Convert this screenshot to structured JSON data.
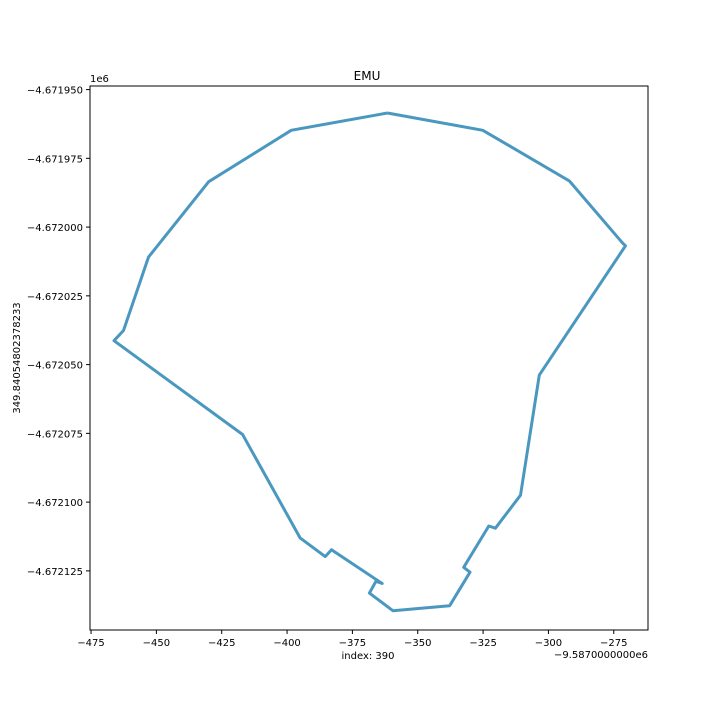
{
  "chart_data": {
    "type": "line",
    "title": "EMU",
    "xlabel": "index: 390",
    "ylabel": "349.84054802378233",
    "x_offset_label": "−9.5870000000e6",
    "y_offset_label": "1e6",
    "xlim": [
      -475.4,
      -261.9
    ],
    "ylim": [
      -4672146.5,
      -4671948.7
    ],
    "xticks": [
      {
        "value": -475,
        "label": "−475"
      },
      {
        "value": -450,
        "label": "−450"
      },
      {
        "value": -425,
        "label": "−425"
      },
      {
        "value": -400,
        "label": "−400"
      },
      {
        "value": -375,
        "label": "−375"
      },
      {
        "value": -350,
        "label": "−350"
      },
      {
        "value": -325,
        "label": "−325"
      },
      {
        "value": -300,
        "label": "−300"
      },
      {
        "value": -275,
        "label": "−275"
      }
    ],
    "yticks": [
      {
        "value": -4671950,
        "label": "−4.671950"
      },
      {
        "value": -4671975,
        "label": "−4.671975"
      },
      {
        "value": -4672000,
        "label": "−4.672000"
      },
      {
        "value": -4672025,
        "label": "−4.672025"
      },
      {
        "value": -4672050,
        "label": "−4.672050"
      },
      {
        "value": -4672075,
        "label": "−4.672075"
      },
      {
        "value": -4672100,
        "label": "−4.672100"
      },
      {
        "value": -4672125,
        "label": "−4.672125"
      }
    ],
    "grid": false,
    "series": [
      {
        "color": "#4a98c0",
        "x": [
          -361.6,
          -325.1,
          -292.0,
          -271.7,
          -270.5,
          -303.5,
          -310.7,
          -320.3,
          -322.8,
          -332.4,
          -330.0,
          -337.8,
          -359.5,
          -368.5,
          -366.0,
          -363.6,
          -383.0,
          -385.4,
          -395.0,
          -417.0,
          -466.2,
          -462.6,
          -453.0,
          -430.0,
          -398.4,
          -361.6
        ],
        "y": [
          -4671958.5,
          -4671964.8,
          -4671983.2,
          -4672005.7,
          -4672006.8,
          -4672053.8,
          -4672097.5,
          -4672109.5,
          -4672108.7,
          -4672123.7,
          -4672125.5,
          -4672137.7,
          -4672139.5,
          -4672133.1,
          -4672128.8,
          -4672129.6,
          -4672117.3,
          -4672119.8,
          -4672113.0,
          -4672075.4,
          -4672041.3,
          -4672037.6,
          -4672010.9,
          -4671983.5,
          -4671964.8,
          -4671958.5
        ]
      }
    ]
  }
}
